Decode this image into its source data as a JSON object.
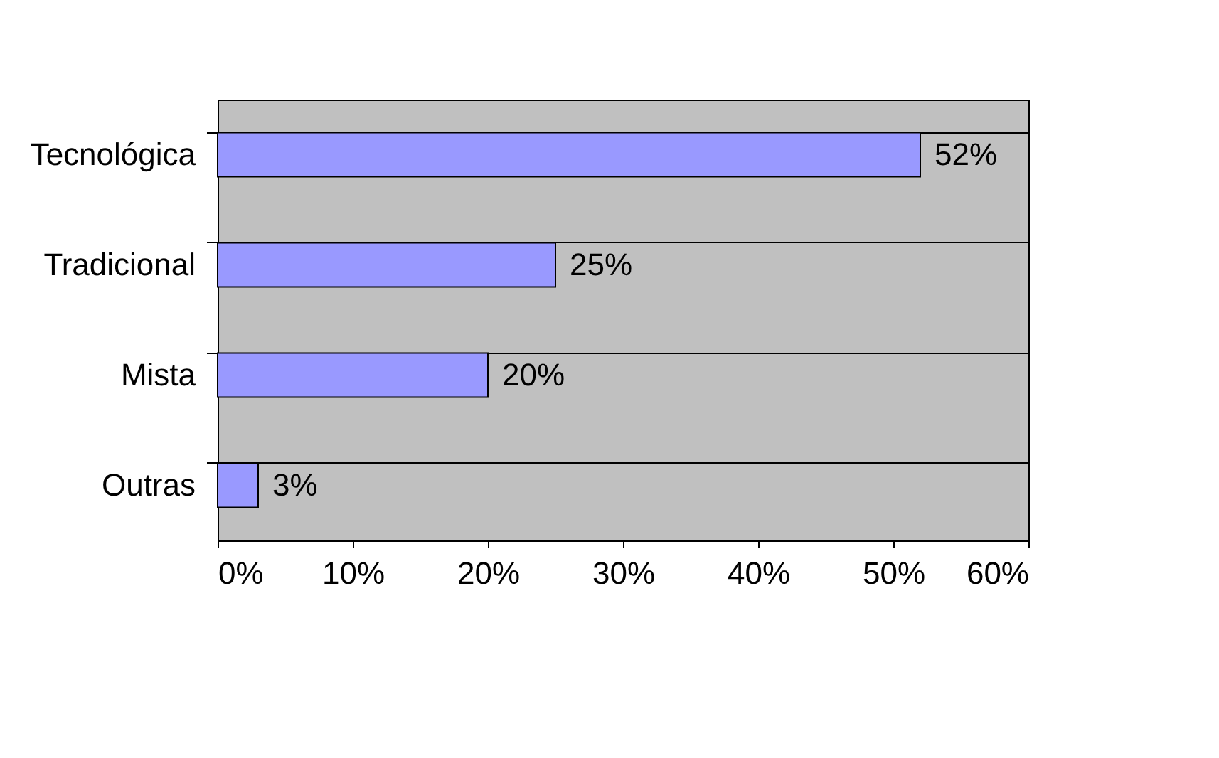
{
  "chart_data": {
    "type": "bar",
    "orientation": "horizontal",
    "categories": [
      "Tecnológica",
      "Tradicional",
      "Mista",
      "Outras"
    ],
    "values": [
      52,
      25,
      20,
      3
    ],
    "color": "#9999ff",
    "value_labels": [
      "52%",
      "25%",
      "20%",
      "3%"
    ],
    "xlim": [
      0,
      60
    ],
    "xticks": [
      {
        "value": 0,
        "label": "0%"
      },
      {
        "value": 10,
        "label": "10%"
      },
      {
        "value": 20,
        "label": "20%"
      },
      {
        "value": 30,
        "label": "30%"
      },
      {
        "value": 40,
        "label": "40%"
      },
      {
        "value": 50,
        "label": "50%"
      },
      {
        "value": 60,
        "label": "60%"
      }
    ],
    "grid": "y"
  }
}
